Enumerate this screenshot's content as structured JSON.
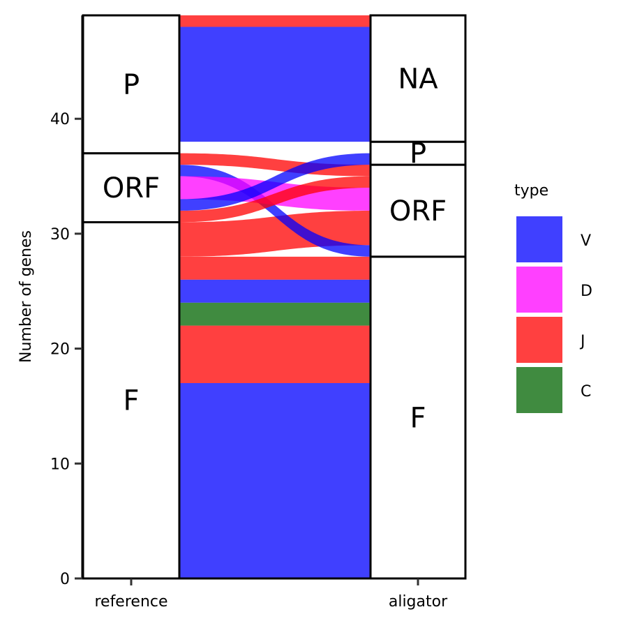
{
  "chart_data": {
    "type": "alluvial",
    "ylabel": "Number of genes",
    "axes": [
      "reference",
      "aligator"
    ],
    "ylim": [
      0,
      49
    ],
    "yticks": [
      0,
      10,
      20,
      30,
      40
    ],
    "legend": {
      "title": "type",
      "position": "right",
      "entries": [
        {
          "key": "V",
          "label": "V",
          "color": "#0000ff"
        },
        {
          "key": "D",
          "label": "D",
          "color": "#ff00ff"
        },
        {
          "key": "J",
          "label": "J",
          "color": "#ff0000"
        },
        {
          "key": "C",
          "label": "C",
          "color": "#006400"
        }
      ]
    },
    "strata": {
      "reference": [
        {
          "label": "F",
          "from": 0,
          "to": 31
        },
        {
          "label": "ORF",
          "from": 31,
          "to": 37
        },
        {
          "label": "P",
          "from": 37,
          "to": 49
        }
      ],
      "aligator": [
        {
          "label": "F",
          "from": 0,
          "to": 28
        },
        {
          "label": "ORF",
          "from": 28,
          "to": 36
        },
        {
          "label": "P",
          "from": 36,
          "to": 38
        },
        {
          "label": "NA",
          "from": 38,
          "to": 49
        }
      ]
    },
    "flows": [
      {
        "type": "V",
        "count": 17,
        "reference": "F",
        "aligator": "F",
        "left": [
          0,
          17
        ],
        "right": [
          0,
          17
        ]
      },
      {
        "type": "J",
        "count": 5,
        "reference": "F",
        "aligator": "F",
        "left": [
          17,
          22
        ],
        "right": [
          17,
          22
        ]
      },
      {
        "type": "C",
        "count": 2,
        "reference": "F",
        "aligator": "F",
        "left": [
          22,
          24
        ],
        "right": [
          22,
          24
        ]
      },
      {
        "type": "V",
        "count": 2,
        "reference": "F",
        "aligator": "F",
        "left": [
          24,
          26
        ],
        "right": [
          24,
          26
        ]
      },
      {
        "type": "J",
        "count": 2,
        "reference": "F",
        "aligator": "F",
        "left": [
          26,
          28
        ],
        "right": [
          26,
          28
        ]
      },
      {
        "type": "J",
        "count": 3,
        "reference": "F",
        "aligator": "ORF",
        "left": [
          28,
          31
        ],
        "right": [
          29,
          32
        ]
      },
      {
        "type": "V",
        "count": 1,
        "reference": "ORF",
        "aligator": "ORF",
        "left": [
          35,
          36
        ],
        "right": [
          28,
          29
        ]
      },
      {
        "type": "D",
        "count": 2,
        "reference": "ORF",
        "aligator": "ORF",
        "left": [
          33,
          35
        ],
        "right": [
          32,
          34
        ]
      },
      {
        "type": "J",
        "count": 1,
        "reference": "ORF",
        "aligator": "ORF",
        "left": [
          31,
          32
        ],
        "right": [
          34,
          35
        ]
      },
      {
        "type": "J",
        "count": 1,
        "reference": "ORF",
        "aligator": "ORF",
        "left": [
          36,
          37
        ],
        "right": [
          35,
          36
        ]
      },
      {
        "type": "V",
        "count": 1,
        "reference": "ORF",
        "aligator": "P",
        "left": [
          32,
          33
        ],
        "right": [
          36,
          37
        ]
      },
      {
        "type": "V",
        "count": 10,
        "reference": "P",
        "aligator": "NA",
        "left": [
          38,
          48
        ],
        "right": [
          38,
          48
        ]
      },
      {
        "type": "J",
        "count": 1,
        "reference": "P",
        "aligator": "NA",
        "left": [
          48,
          49
        ],
        "right": [
          48,
          49
        ]
      }
    ]
  }
}
